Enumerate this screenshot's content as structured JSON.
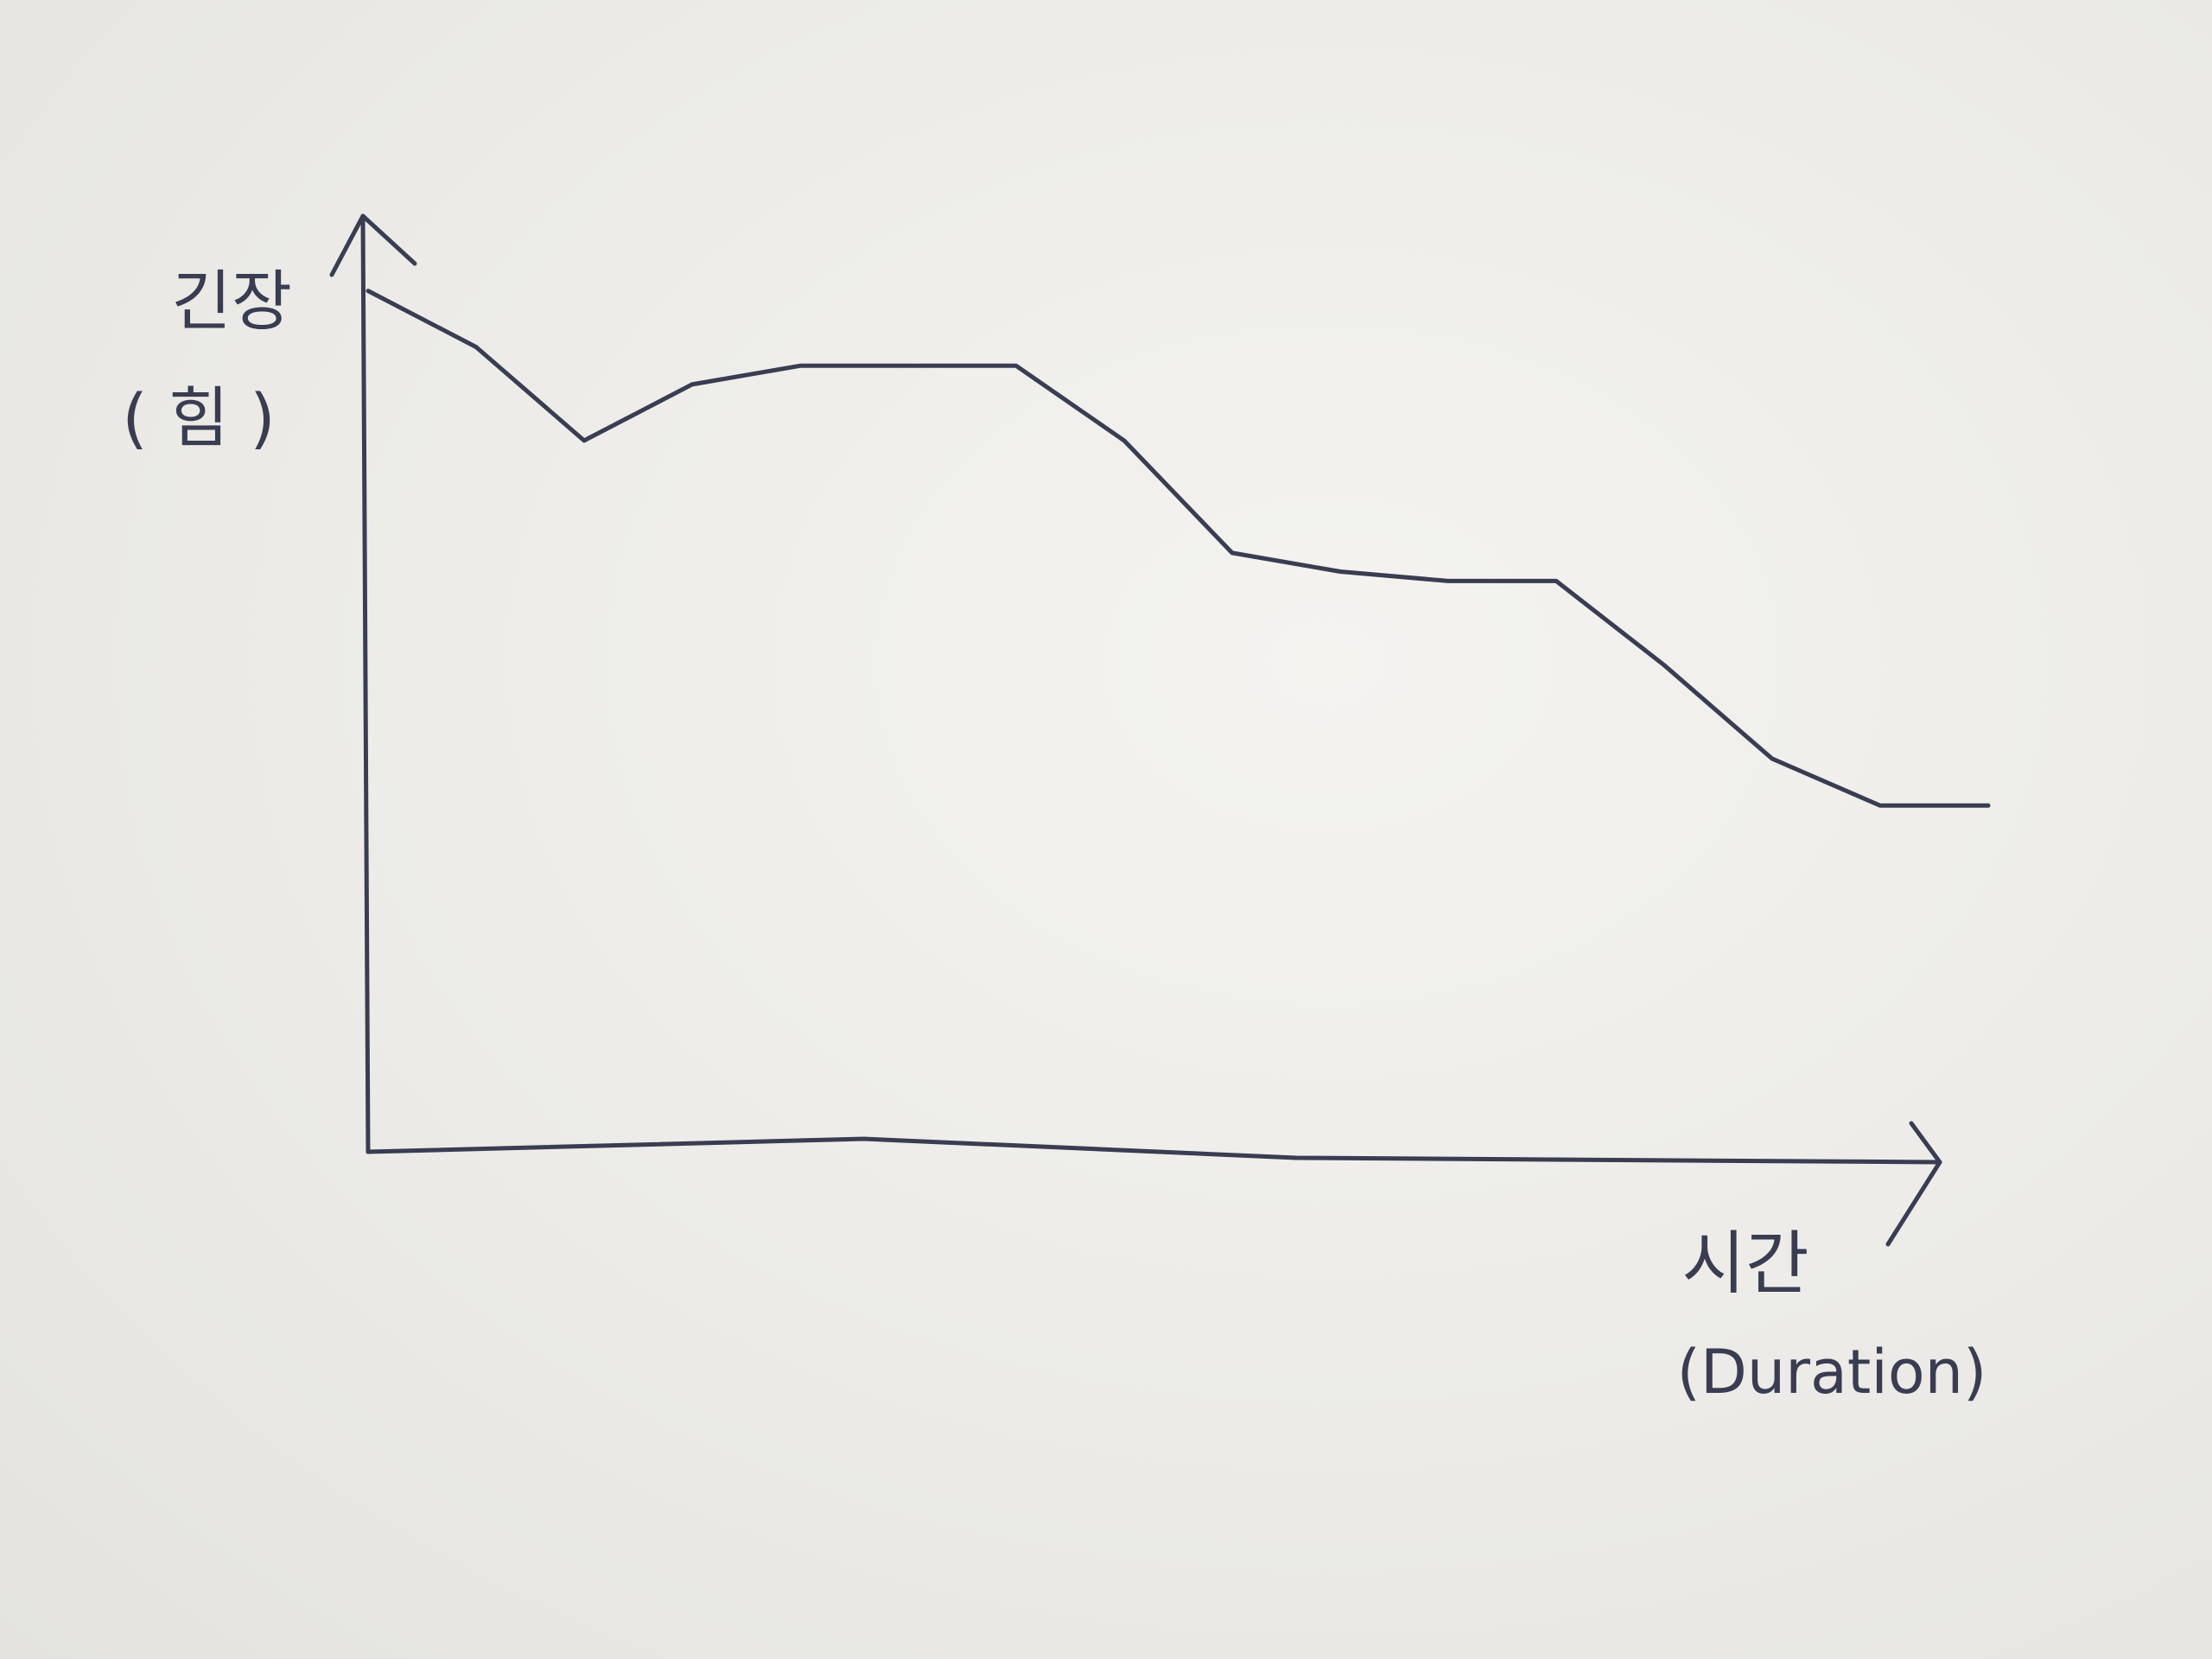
{
  "chart_data": {
    "type": "line",
    "ylabel": "긴장",
    "ylabel_sub": "( 힘 )",
    "xlabel": "시간",
    "xlabel_sub": "(Duration)",
    "x": [
      0,
      1,
      2,
      3,
      4,
      5,
      6,
      7,
      8,
      9,
      10,
      11,
      12,
      13,
      14,
      15
    ],
    "values": [
      92,
      86,
      76,
      82,
      84,
      84,
      84,
      76,
      64,
      62,
      61,
      61,
      52,
      42,
      37,
      37
    ],
    "xlim": [
      0,
      16
    ],
    "ylim": [
      0,
      100
    ],
    "grid": false,
    "legend": "none",
    "tick_labels": false,
    "line_color": "#3a3d52",
    "paper_color": "#ecebe8"
  }
}
